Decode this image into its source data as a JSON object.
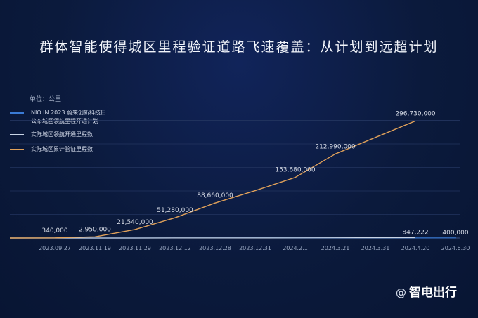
{
  "title": "群体智能使得城区里程验证道路飞速覆盖：从计划到远超计划",
  "unit_label": "单位：公里",
  "legend": [
    {
      "label_line1": "NIO IN 2023 蔚来创新科技日",
      "label_line2": "公布城区领航里程开通计划",
      "color": "#3a7bd5"
    },
    {
      "label_line1": "实际城区领航开通里程数",
      "label_line2": "",
      "color": "#c8d4e6"
    },
    {
      "label_line1": "实际城区累计验证里程数",
      "label_line2": "",
      "color": "#e0a15a"
    }
  ],
  "watermark": {
    "at": "@",
    "text": "智电出行"
  },
  "chart_data": {
    "type": "line",
    "title": "群体智能使得城区里程验证道路飞速覆盖：从计划到远超计划",
    "unit": "单位：公里",
    "categories": [
      "2023.09.27",
      "2023.11.19",
      "2023.11.29",
      "2023.12.12",
      "2023.12.28",
      "2023.12.31",
      "2024.2.1",
      "2024.3.21",
      "2024.3.31",
      "2024.4.20",
      "2024.6.30"
    ],
    "grid": true,
    "legend_position": "left",
    "ylim": [
      0,
      340000000
    ],
    "series": [
      {
        "name": "实际城区累计验证里程数",
        "color": "#e0a15a",
        "x": [
          "2023.09.27",
          "2023.11.19",
          "2023.11.29",
          "2023.12.12",
          "2023.12.28",
          "2023.12.31",
          "2024.2.1",
          "2024.3.21",
          "2024.4.20"
        ],
        "values": [
          340000,
          2950000,
          21540000,
          51280000,
          88660000,
          120000000,
          153680000,
          212990000,
          296730000
        ],
        "labels": [
          "340,000",
          "2,950,000",
          "21,540,000",
          "51,280,000",
          "88,660,000",
          "",
          "153,680,000",
          "212,990,000",
          "296,730,000"
        ]
      },
      {
        "name": "实际城区领航开通里程数",
        "color": "#c8d4e6",
        "x": [
          "2023.09.27",
          "2023.11.19",
          "2023.11.29",
          "2023.12.12",
          "2023.12.28",
          "2023.12.31",
          "2024.2.1",
          "2024.3.21",
          "2024.3.31",
          "2024.4.20"
        ],
        "values": [
          0,
          30000,
          60000,
          120000,
          200000,
          260000,
          400000,
          600000,
          700000,
          847222
        ],
        "labels": [
          "",
          "",
          "",
          "",
          "",
          "",
          "",
          "",
          "",
          "847,222"
        ]
      },
      {
        "name": "NIO IN 2023 蔚来创新科技日 公布城区领航里程开通计划",
        "color": "#3a7bd5",
        "x": [
          "2023.09.27",
          "2023.12.31",
          "2024.4.20",
          "2024.6.30"
        ],
        "values": [
          0,
          100000,
          200000,
          400000
        ],
        "labels": [
          "",
          "",
          "",
          "400,000"
        ]
      }
    ]
  }
}
